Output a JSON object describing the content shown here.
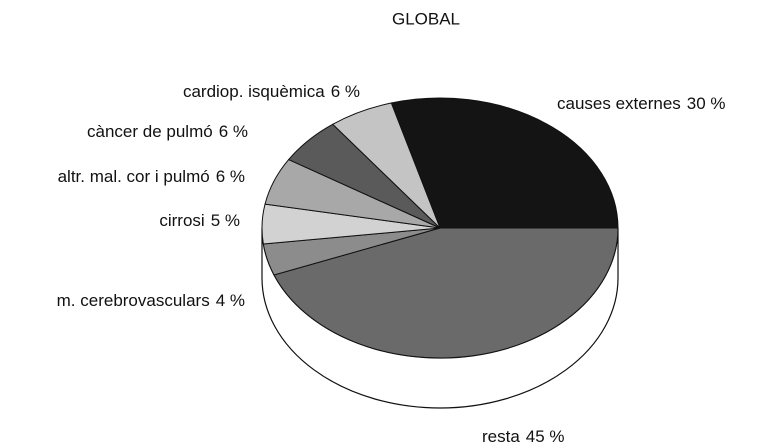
{
  "chart_data": {
    "type": "pie",
    "title": "GLOBAL",
    "categories": [
      "causes externes",
      "resta",
      "m. cerebrovasculars",
      "cirrosi",
      "altr. mal. cor i pulmó",
      "càncer de pulmó",
      "cardiop. isquèmica"
    ],
    "values": [
      30,
      45,
      4,
      5,
      6,
      6,
      6
    ],
    "value_labels": [
      "30 %",
      "45 %",
      "4 %",
      "5 %",
      "6 %",
      "6 %",
      "6 %"
    ],
    "colors": [
      "#141414",
      "#6a6a6a",
      "#8c8c8c",
      "#d2d2d2",
      "#a8a8a8",
      "#5a5a5a",
      "#c4c4c4"
    ]
  }
}
